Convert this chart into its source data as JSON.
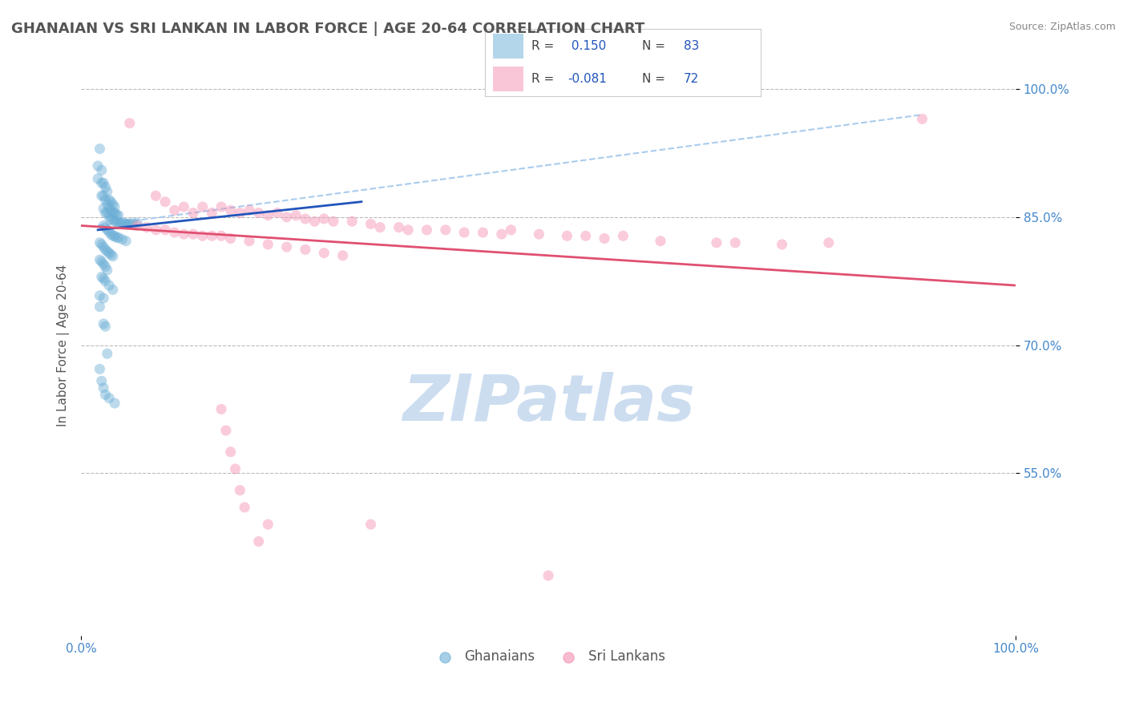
{
  "title": "GHANAIAN VS SRI LANKAN IN LABOR FORCE | AGE 20-64 CORRELATION CHART",
  "source_text": "Source: ZipAtlas.com",
  "ylabel": "In Labor Force | Age 20-64",
  "xlim": [
    0.0,
    1.0
  ],
  "ylim": [
    0.36,
    1.04
  ],
  "ghanaian_color": "#6baed6",
  "srilankan_color": "#f48fb1",
  "trend_ghanaian_color": "#2255bb",
  "trend_srilankan_color": "#e05070",
  "trend_dashed_color": "#aaccee",
  "watermark_text": "ZIPatlas",
  "watermark_color": "#ccddf0",
  "background_color": "#ffffff",
  "grid_color": "#bbbbbb",
  "title_color": "#555555",
  "tick_color": "#4488cc",
  "ytick_positions": [
    0.55,
    0.7,
    0.85,
    1.0
  ],
  "ytick_labels": [
    "55.0%",
    "70.0%",
    "85.0%",
    "100.0%"
  ],
  "ghanaian_points": [
    [
      0.018,
      0.91
    ],
    [
      0.018,
      0.895
    ],
    [
      0.02,
      0.93
    ],
    [
      0.022,
      0.875
    ],
    [
      0.022,
      0.89
    ],
    [
      0.022,
      0.905
    ],
    [
      0.024,
      0.86
    ],
    [
      0.024,
      0.875
    ],
    [
      0.024,
      0.89
    ],
    [
      0.026,
      0.855
    ],
    [
      0.026,
      0.87
    ],
    [
      0.026,
      0.885
    ],
    [
      0.028,
      0.855
    ],
    [
      0.028,
      0.865
    ],
    [
      0.028,
      0.88
    ],
    [
      0.03,
      0.85
    ],
    [
      0.03,
      0.86
    ],
    [
      0.03,
      0.87
    ],
    [
      0.032,
      0.848
    ],
    [
      0.032,
      0.858
    ],
    [
      0.032,
      0.868
    ],
    [
      0.034,
      0.848
    ],
    [
      0.034,
      0.855
    ],
    [
      0.034,
      0.865
    ],
    [
      0.036,
      0.845
    ],
    [
      0.036,
      0.855
    ],
    [
      0.036,
      0.862
    ],
    [
      0.038,
      0.845
    ],
    [
      0.038,
      0.853
    ],
    [
      0.04,
      0.842
    ],
    [
      0.04,
      0.852
    ],
    [
      0.042,
      0.843
    ],
    [
      0.044,
      0.843
    ],
    [
      0.046,
      0.843
    ],
    [
      0.048,
      0.842
    ],
    [
      0.05,
      0.842
    ],
    [
      0.052,
      0.842
    ],
    [
      0.055,
      0.843
    ],
    [
      0.06,
      0.843
    ],
    [
      0.024,
      0.84
    ],
    [
      0.026,
      0.838
    ],
    [
      0.028,
      0.835
    ],
    [
      0.03,
      0.833
    ],
    [
      0.032,
      0.83
    ],
    [
      0.034,
      0.828
    ],
    [
      0.036,
      0.828
    ],
    [
      0.038,
      0.826
    ],
    [
      0.04,
      0.826
    ],
    [
      0.044,
      0.824
    ],
    [
      0.048,
      0.822
    ],
    [
      0.02,
      0.82
    ],
    [
      0.022,
      0.818
    ],
    [
      0.024,
      0.815
    ],
    [
      0.026,
      0.812
    ],
    [
      0.028,
      0.81
    ],
    [
      0.03,
      0.808
    ],
    [
      0.032,
      0.806
    ],
    [
      0.034,
      0.804
    ],
    [
      0.02,
      0.8
    ],
    [
      0.022,
      0.798
    ],
    [
      0.024,
      0.795
    ],
    [
      0.026,
      0.792
    ],
    [
      0.028,
      0.788
    ],
    [
      0.022,
      0.78
    ],
    [
      0.024,
      0.778
    ],
    [
      0.026,
      0.775
    ],
    [
      0.03,
      0.77
    ],
    [
      0.034,
      0.765
    ],
    [
      0.02,
      0.758
    ],
    [
      0.024,
      0.755
    ],
    [
      0.02,
      0.745
    ],
    [
      0.024,
      0.725
    ],
    [
      0.026,
      0.722
    ],
    [
      0.028,
      0.69
    ],
    [
      0.02,
      0.672
    ],
    [
      0.022,
      0.658
    ],
    [
      0.024,
      0.65
    ],
    [
      0.026,
      0.642
    ],
    [
      0.03,
      0.638
    ],
    [
      0.036,
      0.632
    ]
  ],
  "srilankan_points": [
    [
      0.052,
      0.96
    ],
    [
      0.08,
      0.875
    ],
    [
      0.09,
      0.868
    ],
    [
      0.1,
      0.858
    ],
    [
      0.11,
      0.862
    ],
    [
      0.12,
      0.855
    ],
    [
      0.13,
      0.862
    ],
    [
      0.14,
      0.855
    ],
    [
      0.15,
      0.862
    ],
    [
      0.16,
      0.858
    ],
    [
      0.17,
      0.855
    ],
    [
      0.18,
      0.858
    ],
    [
      0.19,
      0.855
    ],
    [
      0.2,
      0.852
    ],
    [
      0.21,
      0.855
    ],
    [
      0.22,
      0.85
    ],
    [
      0.23,
      0.852
    ],
    [
      0.24,
      0.848
    ],
    [
      0.25,
      0.845
    ],
    [
      0.26,
      0.848
    ],
    [
      0.27,
      0.845
    ],
    [
      0.29,
      0.845
    ],
    [
      0.31,
      0.842
    ],
    [
      0.32,
      0.838
    ],
    [
      0.34,
      0.838
    ],
    [
      0.35,
      0.835
    ],
    [
      0.37,
      0.835
    ],
    [
      0.39,
      0.835
    ],
    [
      0.41,
      0.832
    ],
    [
      0.43,
      0.832
    ],
    [
      0.45,
      0.83
    ],
    [
      0.46,
      0.835
    ],
    [
      0.49,
      0.83
    ],
    [
      0.52,
      0.828
    ],
    [
      0.54,
      0.828
    ],
    [
      0.56,
      0.825
    ],
    [
      0.58,
      0.828
    ],
    [
      0.62,
      0.822
    ],
    [
      0.68,
      0.82
    ],
    [
      0.7,
      0.82
    ],
    [
      0.75,
      0.818
    ],
    [
      0.8,
      0.82
    ],
    [
      0.9,
      0.965
    ],
    [
      0.06,
      0.84
    ],
    [
      0.07,
      0.838
    ],
    [
      0.08,
      0.835
    ],
    [
      0.09,
      0.835
    ],
    [
      0.1,
      0.832
    ],
    [
      0.11,
      0.83
    ],
    [
      0.12,
      0.83
    ],
    [
      0.13,
      0.828
    ],
    [
      0.14,
      0.828
    ],
    [
      0.15,
      0.828
    ],
    [
      0.16,
      0.825
    ],
    [
      0.18,
      0.822
    ],
    [
      0.2,
      0.818
    ],
    [
      0.22,
      0.815
    ],
    [
      0.24,
      0.812
    ],
    [
      0.26,
      0.808
    ],
    [
      0.28,
      0.805
    ],
    [
      0.15,
      0.625
    ],
    [
      0.155,
      0.6
    ],
    [
      0.16,
      0.575
    ],
    [
      0.165,
      0.555
    ],
    [
      0.17,
      0.53
    ],
    [
      0.175,
      0.51
    ],
    [
      0.2,
      0.49
    ],
    [
      0.19,
      0.47
    ],
    [
      0.5,
      0.43
    ],
    [
      0.31,
      0.49
    ]
  ],
  "marker_size": 90,
  "marker_alpha": 0.45,
  "trend_gh_x0": 0.018,
  "trend_gh_x1": 0.3,
  "trend_gh_y0": 0.835,
  "trend_gh_y1": 0.868,
  "trend_dashed_x0": 0.018,
  "trend_dashed_x1": 0.9,
  "trend_dashed_y0": 0.84,
  "trend_dashed_y1": 0.97,
  "trend_sl_x0": 0.0,
  "trend_sl_x1": 1.0,
  "trend_sl_y0": 0.84,
  "trend_sl_y1": 0.77
}
